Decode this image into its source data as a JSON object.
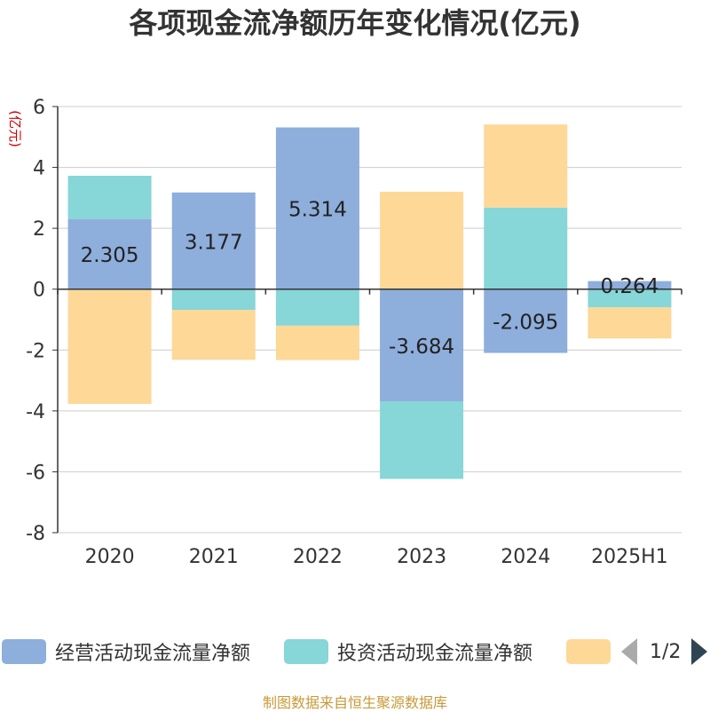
{
  "chart_data": {
    "type": "bar",
    "stacked": true,
    "title": "各项现金流净额历年变化情况(亿元)",
    "ylabel": "(亿元)",
    "xlabel": "",
    "categories": [
      "2020",
      "2021",
      "2022",
      "2023",
      "2024",
      "2025H1"
    ],
    "ylim": [
      -8,
      6
    ],
    "yticks": [
      -8,
      -6,
      -4,
      -2,
      0,
      2,
      4,
      6
    ],
    "grid": true,
    "series": [
      {
        "name": "经营活动现金流量净额",
        "color": "#8eaedc",
        "values": [
          2.305,
          3.177,
          5.314,
          -3.684,
          -2.095,
          0.264
        ],
        "show_labels": true
      },
      {
        "name": "投资活动现金流量净额",
        "color": "#87d6d8",
        "values": [
          1.42,
          -0.68,
          -1.2,
          -2.55,
          2.68,
          -0.6
        ],
        "show_labels": false
      },
      {
        "name": "",
        "color": "#fdd897",
        "values": [
          -3.77,
          -1.64,
          -1.13,
          3.2,
          2.73,
          -1.02
        ],
        "show_labels": false
      }
    ],
    "data_labels": [
      "2.305",
      "3.177",
      "5.314",
      "-3.684",
      "-2.095",
      "0.264"
    ],
    "legend_position": "bottom"
  },
  "legend": {
    "page_text": "1/2"
  },
  "source_note": "制图数据来自恒生聚源数据库",
  "colors": {
    "axis_label_red": "#cc0000",
    "pager_active": "#2f4554",
    "pager_inactive": "#aaaaaa"
  }
}
